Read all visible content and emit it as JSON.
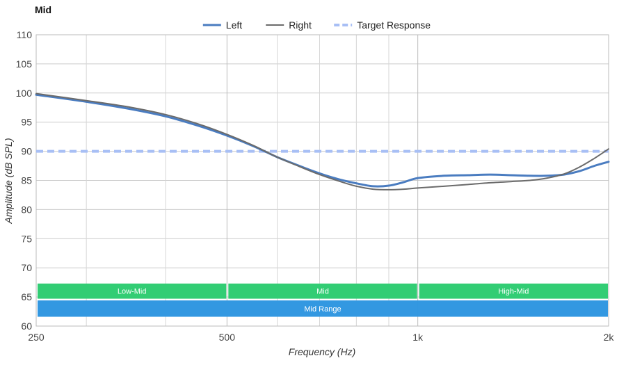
{
  "chart_data": {
    "type": "line",
    "title": "Mid",
    "xlabel": "Frequency (Hz)",
    "ylabel": "Amplitude (dB SPL)",
    "x_scale": "log",
    "xlim": [
      250,
      2000
    ],
    "ylim": [
      60,
      110
    ],
    "x_ticks": [
      {
        "value": 250,
        "label": "250"
      },
      {
        "value": 500,
        "label": "500"
      },
      {
        "value": 1000,
        "label": "1k"
      },
      {
        "value": 2000,
        "label": "2k"
      }
    ],
    "x_minor_gridlines": [
      300,
      400,
      600,
      700,
      800,
      900
    ],
    "y_ticks": [
      60,
      65,
      70,
      75,
      80,
      85,
      90,
      95,
      100,
      105,
      110
    ],
    "grid": true,
    "legend_position": "top-center",
    "legend": [
      {
        "name": "Left",
        "color": "#4a7cc0",
        "style": "solid"
      },
      {
        "name": "Right",
        "color": "#6b6b6b",
        "style": "solid"
      },
      {
        "name": "Target Response",
        "color": "#a8bff5",
        "style": "dashed"
      }
    ],
    "series": [
      {
        "name": "Left",
        "color": "#4a7cc0",
        "width": 3,
        "dashed": false,
        "points": [
          [
            250,
            99.7
          ],
          [
            300,
            98.5
          ],
          [
            350,
            97.3
          ],
          [
            400,
            96.0
          ],
          [
            450,
            94.4
          ],
          [
            500,
            92.7
          ],
          [
            550,
            90.9
          ],
          [
            600,
            89.0
          ],
          [
            650,
            87.5
          ],
          [
            700,
            86.2
          ],
          [
            750,
            85.2
          ],
          [
            800,
            84.5
          ],
          [
            850,
            84.0
          ],
          [
            900,
            84.1
          ],
          [
            950,
            84.7
          ],
          [
            1000,
            85.4
          ],
          [
            1100,
            85.8
          ],
          [
            1200,
            85.9
          ],
          [
            1300,
            86.0
          ],
          [
            1400,
            85.9
          ],
          [
            1500,
            85.8
          ],
          [
            1600,
            85.8
          ],
          [
            1700,
            86.0
          ],
          [
            1800,
            86.6
          ],
          [
            1900,
            87.5
          ],
          [
            2000,
            88.2
          ]
        ]
      },
      {
        "name": "Right",
        "color": "#6b6b6b",
        "width": 2,
        "dashed": false,
        "points": [
          [
            250,
            99.9
          ],
          [
            300,
            98.7
          ],
          [
            350,
            97.6
          ],
          [
            400,
            96.3
          ],
          [
            450,
            94.7
          ],
          [
            500,
            92.9
          ],
          [
            550,
            91.0
          ],
          [
            600,
            89.0
          ],
          [
            650,
            87.4
          ],
          [
            700,
            86.0
          ],
          [
            750,
            84.9
          ],
          [
            800,
            84.0
          ],
          [
            850,
            83.5
          ],
          [
            900,
            83.4
          ],
          [
            950,
            83.5
          ],
          [
            1000,
            83.7
          ],
          [
            1100,
            84.0
          ],
          [
            1200,
            84.3
          ],
          [
            1300,
            84.6
          ],
          [
            1400,
            84.8
          ],
          [
            1500,
            85.0
          ],
          [
            1600,
            85.4
          ],
          [
            1700,
            86.1
          ],
          [
            1800,
            87.3
          ],
          [
            1900,
            88.8
          ],
          [
            2000,
            90.4
          ]
        ]
      },
      {
        "name": "Target Response",
        "color": "#a8bff5",
        "width": 4,
        "dashed": true,
        "points": [
          [
            250,
            90
          ],
          [
            2000,
            90
          ]
        ]
      }
    ],
    "bands": [
      {
        "label": "Low-Mid",
        "x_start": 250,
        "x_end": 500,
        "y_top": 67.3,
        "y_bottom": 64.7,
        "color": "#2ecc71"
      },
      {
        "label": "Mid",
        "x_start": 500,
        "x_end": 1000,
        "y_top": 67.3,
        "y_bottom": 64.7,
        "color": "#2ecc71"
      },
      {
        "label": "High-Mid",
        "x_start": 1000,
        "x_end": 2000,
        "y_top": 67.3,
        "y_bottom": 64.7,
        "color": "#2ecc71"
      },
      {
        "label": "Mid Range",
        "x_start": 250,
        "x_end": 2000,
        "y_top": 64.4,
        "y_bottom": 61.6,
        "color": "#2f96e0"
      }
    ]
  }
}
